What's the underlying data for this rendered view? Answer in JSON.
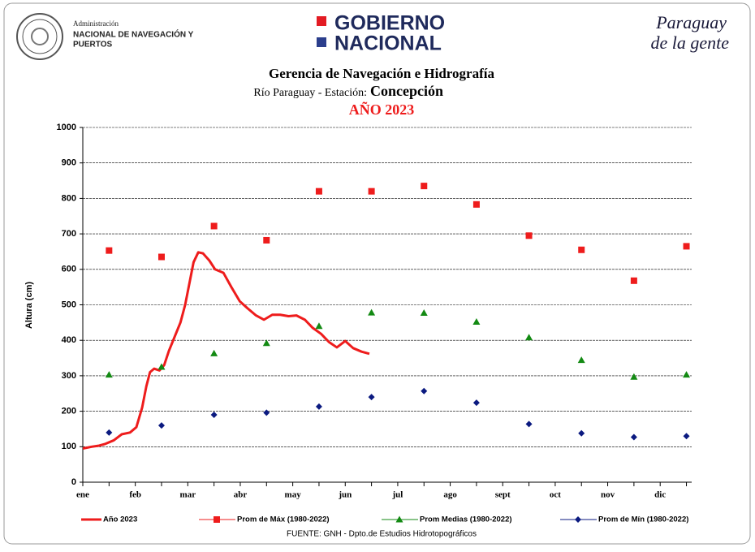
{
  "header": {
    "agency_line1": "Administración",
    "agency_line2": "NACIONAL DE NAVEGACIÓN Y",
    "agency_line3": "PUERTOS",
    "gov_line1": "GOBIERNO",
    "gov_line2": "NACIONAL",
    "slogan_line1": "Paraguay",
    "slogan_line2": "de la gente"
  },
  "chart_data": {
    "type": "line",
    "title": "Gerencia de Navegación e Hidrografía",
    "subtitle_prefix": "Río Paraguay - Estación:",
    "subtitle_station": "Concepción",
    "year_label": "AÑO 2023",
    "y_label": "Altura (cm)",
    "source": "FUENTE: GNH - Dpto.de Estudios Hidrotopográficos",
    "categories": [
      "ene",
      "feb",
      "mar",
      "abr",
      "may",
      "jun",
      "jul",
      "ago",
      "sept",
      "oct",
      "nov",
      "dic"
    ],
    "xlim": [
      0,
      11.6
    ],
    "ylim": [
      0,
      1000
    ],
    "yticks": [
      0,
      100,
      200,
      300,
      400,
      500,
      600,
      700,
      800,
      900,
      1000
    ],
    "grid": true,
    "series": [
      {
        "name": "Año 2023",
        "color": "#ee1c1c",
        "style": "line",
        "x": [
          0,
          0.17,
          0.31,
          0.43,
          0.59,
          0.74,
          0.9,
          1.02,
          1.13,
          1.21,
          1.28,
          1.36,
          1.46,
          1.55,
          1.64,
          1.75,
          1.86,
          1.95,
          2.03,
          2.11,
          2.2,
          2.29,
          2.41,
          2.52,
          2.68,
          2.83,
          2.99,
          3.14,
          3.3,
          3.45,
          3.61,
          3.76,
          3.92,
          4.07,
          4.23,
          4.38,
          4.54,
          4.69,
          4.84,
          5,
          5.15,
          5.31,
          5.46
        ],
        "values": [
          95,
          100,
          103,
          108,
          118,
          135,
          140,
          155,
          210,
          270,
          310,
          320,
          315,
          330,
          370,
          410,
          450,
          500,
          560,
          620,
          648,
          645,
          625,
          600,
          590,
          550,
          510,
          490,
          470,
          458,
          472,
          472,
          468,
          470,
          458,
          435,
          418,
          395,
          380,
          398,
          378,
          368,
          362
        ]
      },
      {
        "name": "Prom de Máx (1980-2022)",
        "color": "#ee1c1c",
        "style": "square",
        "values": [
          653,
          635,
          722,
          682,
          820,
          820,
          835,
          783,
          695,
          655,
          568,
          665
        ]
      },
      {
        "name": "Prom Medias (1980-2022)",
        "color": "#138a13",
        "style": "triangle",
        "values": [
          303,
          325,
          363,
          392,
          440,
          478,
          477,
          452,
          408,
          344,
          297,
          303
        ]
      },
      {
        "name": "Prom de Mín  (1980-2022)",
        "color": "#0b1a80",
        "style": "diamond",
        "values": [
          140,
          160,
          190,
          196,
          213,
          240,
          257,
          224,
          164,
          138,
          127,
          130
        ]
      }
    ]
  }
}
